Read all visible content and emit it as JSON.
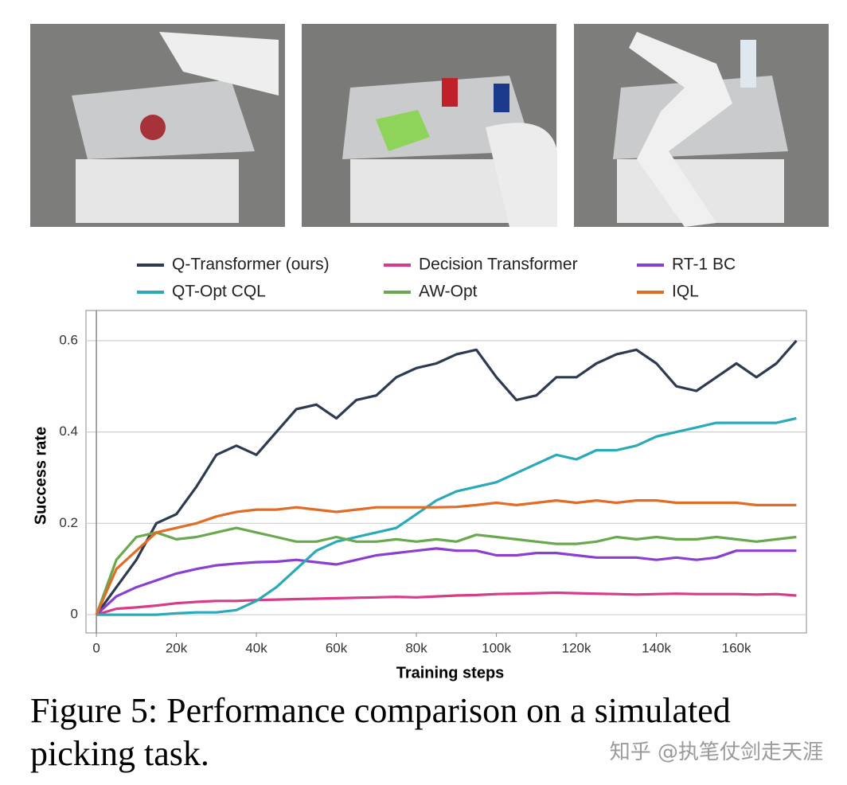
{
  "chart_data": {
    "type": "line",
    "legend": "top",
    "xlabel": "Training steps",
    "ylabel": "Success rate",
    "xlim": [
      -2600,
      177500
    ],
    "ylim": [
      -0.04,
      0.666
    ],
    "xticks": [
      0,
      {
        "value": 20000,
        "label": "20k"
      },
      {
        "value": 40000,
        "label": "40k"
      },
      {
        "value": 60000,
        "label": "60k"
      },
      {
        "value": 80000,
        "label": "80k"
      },
      {
        "value": 100000,
        "label": "100k"
      },
      {
        "value": 120000,
        "label": "120k"
      },
      {
        "value": 140000,
        "label": "140k"
      },
      {
        "value": 160000,
        "label": "160k"
      }
    ],
    "yticks": [
      0,
      0.2,
      0.4,
      0.6
    ],
    "grid": true,
    "x": [
      0,
      5000,
      10000,
      15000,
      20000,
      25000,
      30000,
      35000,
      40000,
      45000,
      50000,
      55000,
      60000,
      65000,
      70000,
      75000,
      80000,
      85000,
      90000,
      95000,
      100000,
      105000,
      110000,
      115000,
      120000,
      125000,
      130000,
      135000,
      140000,
      145000,
      150000,
      155000,
      160000,
      165000,
      170000,
      175000
    ],
    "series": [
      {
        "name": "Q-Transformer (ours)",
        "color": "#2d3a4f",
        "values": [
          0,
          0.06,
          0.12,
          0.2,
          0.22,
          0.28,
          0.35,
          0.37,
          0.35,
          0.4,
          0.45,
          0.46,
          0.43,
          0.47,
          0.48,
          0.52,
          0.54,
          0.55,
          0.57,
          0.58,
          0.52,
          0.47,
          0.48,
          0.52,
          0.52,
          0.55,
          0.57,
          0.58,
          0.55,
          0.5,
          0.49,
          0.52,
          0.55,
          0.52,
          0.55,
          0.6
        ]
      },
      {
        "name": "Decision Transformer",
        "color": "#d63c8a",
        "values": [
          0,
          0.013,
          0.016,
          0.02,
          0.025,
          0.028,
          0.03,
          0.03,
          0.032,
          0.033,
          0.034,
          0.035,
          0.036,
          0.037,
          0.038,
          0.039,
          0.038,
          0.04,
          0.042,
          0.043,
          0.045,
          0.046,
          0.047,
          0.048,
          0.047,
          0.046,
          0.045,
          0.044,
          0.045,
          0.046,
          0.045,
          0.045,
          0.045,
          0.044,
          0.045,
          0.042
        ]
      },
      {
        "name": "RT-1 BC",
        "color": "#8b3fcf",
        "values": [
          0,
          0.04,
          0.06,
          0.075,
          0.09,
          0.1,
          0.108,
          0.112,
          0.115,
          0.116,
          0.12,
          0.115,
          0.11,
          0.12,
          0.13,
          0.135,
          0.14,
          0.145,
          0.14,
          0.14,
          0.13,
          0.13,
          0.135,
          0.135,
          0.13,
          0.125,
          0.125,
          0.125,
          0.12,
          0.125,
          0.12,
          0.125,
          0.14,
          0.14,
          0.14,
          0.14
        ]
      },
      {
        "name": "QT-Opt CQL",
        "color": "#2aa9b8",
        "values": [
          0,
          0,
          0,
          0,
          0.003,
          0.005,
          0.005,
          0.01,
          0.03,
          0.06,
          0.1,
          0.14,
          0.16,
          0.17,
          0.18,
          0.19,
          0.22,
          0.25,
          0.27,
          0.28,
          0.29,
          0.31,
          0.33,
          0.35,
          0.34,
          0.36,
          0.36,
          0.37,
          0.39,
          0.4,
          0.41,
          0.42,
          0.42,
          0.42,
          0.42,
          0.43
        ]
      },
      {
        "name": "AW-Opt",
        "color": "#6aa84f",
        "values": [
          0,
          0.12,
          0.17,
          0.18,
          0.165,
          0.17,
          0.18,
          0.19,
          0.18,
          0.17,
          0.16,
          0.16,
          0.17,
          0.16,
          0.16,
          0.165,
          0.16,
          0.165,
          0.16,
          0.175,
          0.17,
          0.165,
          0.16,
          0.155,
          0.155,
          0.16,
          0.17,
          0.165,
          0.17,
          0.165,
          0.165,
          0.17,
          0.165,
          0.16,
          0.165,
          0.17
        ]
      },
      {
        "name": "IQL",
        "color": "#e06c26",
        "values": [
          0,
          0.1,
          0.14,
          0.18,
          0.19,
          0.2,
          0.215,
          0.225,
          0.23,
          0.23,
          0.235,
          0.23,
          0.225,
          0.23,
          0.235,
          0.235,
          0.235,
          0.235,
          0.236,
          0.24,
          0.245,
          0.24,
          0.245,
          0.25,
          0.245,
          0.25,
          0.245,
          0.25,
          0.25,
          0.245,
          0.245,
          0.245,
          0.245,
          0.24,
          0.24,
          0.24
        ]
      }
    ]
  },
  "caption": "Figure 5: Performance comparison on a simulated picking task.",
  "watermark": "知乎 @执笔仗剑走天涯"
}
